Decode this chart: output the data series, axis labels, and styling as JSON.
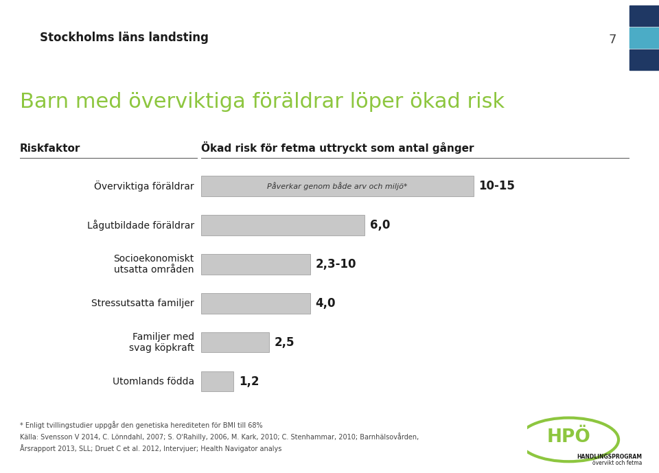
{
  "title": "Barn med överviktiga föräldrar löper ökad risk",
  "title_color": "#8dc63f",
  "header_left": "Riskfaktor",
  "header_right": "Ökad risk för fetma uttryckt som antal gånger",
  "categories": [
    "Överviktiga föräldrar",
    "Lågutbildade föräldrar",
    "Socioekonomiskt\nutsatta områden",
    "Stressutsatta familjer",
    "Familjer med\nsvag köpkraft",
    "Utomlands födda"
  ],
  "values": [
    10.0,
    6.0,
    4.0,
    4.0,
    2.5,
    1.2
  ],
  "labels": [
    "10-15",
    "6,0",
    "2,3-10",
    "4,0",
    "2,5",
    "1,2"
  ],
  "bar_color": "#c8c8c8",
  "bar_edge_color": "#aaaaaa",
  "special_bar_label": "Påverkar genom både arv och miljö*",
  "footnote_line1": "* Enligt tvillingstudier uppgår den genetiska herediteten för BMI till 68%",
  "footnote_line2": "Källa: Svensson V 2014, C. Lönndahl, 2007; S. O'Rahilly, 2006, M. Kark, 2010; C. Stenhammar, 2010; Barnhälsovården,",
  "footnote_line3": "Årsrapport 2013, SLL; Druet C et al. 2012, Intervjuer; Health Navigator analys",
  "page_number": "7",
  "background_color": "#ffffff",
  "header_bg_color": "#e8e6e0",
  "logo_text": "Stockholms läns landsting",
  "logo_color": "#1a1a1a",
  "teal_color": "#4bacc6",
  "dark_blue_color": "#1f3864",
  "green_color": "#8dc63f",
  "hpo_text_color": "#8dc63f",
  "xlim": 15.0,
  "bar_height": 0.52
}
